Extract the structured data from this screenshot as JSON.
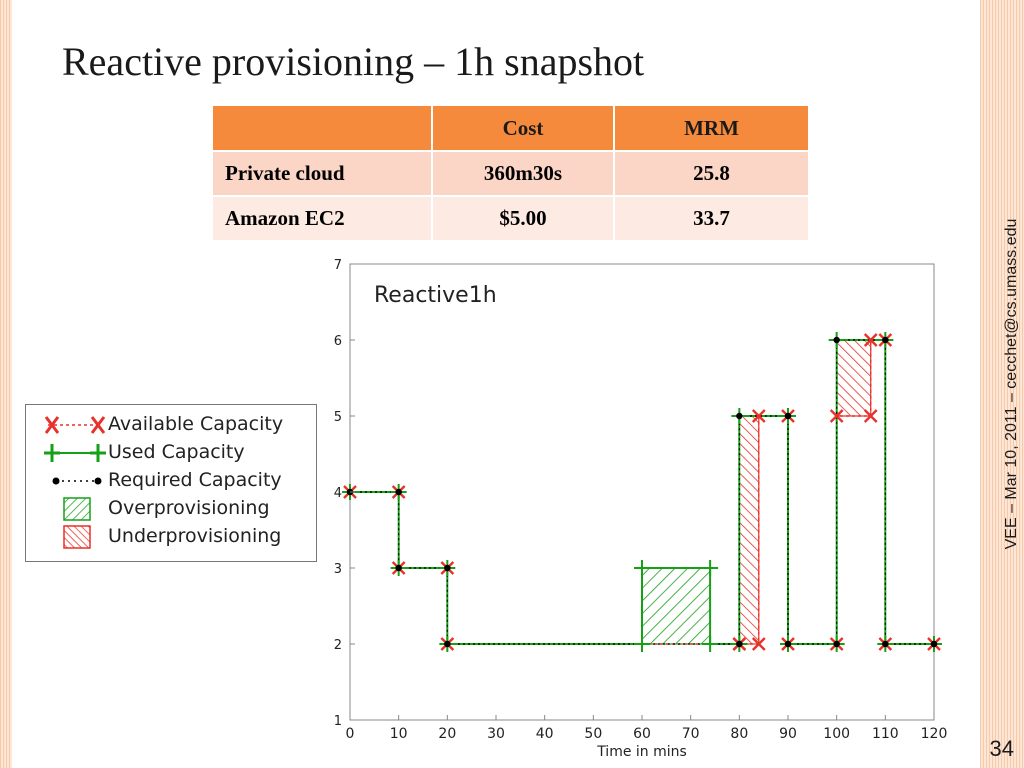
{
  "slide": {
    "title": "Reactive provisioning – 1h snapshot",
    "side_note": "VEE – Mar 10, 2011 – cecchet@cs.umass.edu",
    "page_number": "34",
    "accent_color": "#f58a3c"
  },
  "table": {
    "headers": [
      "",
      "Cost",
      "MRM"
    ],
    "rows": [
      [
        "Private cloud",
        "360m30s",
        "25.8"
      ],
      [
        "Amazon EC2",
        "$5.00",
        "33.7"
      ]
    ]
  },
  "legend": {
    "items": [
      {
        "label": "Available Capacity",
        "icon": "red-x-marker"
      },
      {
        "label": "Used Capacity",
        "icon": "green-plus-marker"
      },
      {
        "label": "Required Capacity",
        "icon": "black-dot-marker"
      },
      {
        "label": "Overprovisioning",
        "icon": "green-hatch"
      },
      {
        "label": "Underprovisioning",
        "icon": "red-hatch"
      }
    ]
  },
  "chart_data": {
    "type": "line",
    "title": "Reactive1h",
    "xlabel": "Time in mins",
    "ylabel": "",
    "xlim": [
      0,
      120
    ],
    "ylim": [
      1,
      7
    ],
    "xticks": [
      0,
      10,
      20,
      30,
      40,
      50,
      60,
      70,
      80,
      90,
      100,
      110,
      120
    ],
    "yticks": [
      1,
      2,
      3,
      4,
      5,
      6,
      7
    ],
    "grid": false,
    "step": true,
    "series": [
      {
        "name": "Available Capacity",
        "color": "#e8312a",
        "marker": "x",
        "x": [
          0,
          10,
          10,
          20,
          20,
          80,
          80,
          84,
          84,
          90,
          90,
          100,
          100,
          107,
          107,
          110,
          110,
          120
        ],
        "y": [
          4,
          4,
          3,
          3,
          2,
          2,
          2,
          2,
          5,
          5,
          2,
          2,
          5,
          5,
          6,
          6,
          2,
          2
        ]
      },
      {
        "name": "Used Capacity",
        "color": "#16a016",
        "marker": "+",
        "x": [
          0,
          10,
          10,
          20,
          20,
          60,
          60,
          74,
          74,
          80,
          80,
          90,
          90,
          100,
          100,
          110,
          110,
          120
        ],
        "y": [
          4,
          4,
          3,
          3,
          2,
          2,
          3,
          3,
          2,
          2,
          5,
          5,
          2,
          2,
          6,
          6,
          2,
          2
        ]
      },
      {
        "name": "Required Capacity",
        "color": "#000000",
        "marker": "dot",
        "x": [
          0,
          10,
          10,
          20,
          20,
          80,
          80,
          90,
          90,
          100,
          100,
          110,
          110,
          120
        ],
        "y": [
          4,
          4,
          3,
          3,
          2,
          2,
          5,
          5,
          2,
          2,
          6,
          6,
          2,
          2
        ]
      }
    ],
    "regions": [
      {
        "name": "Overprovisioning",
        "color": "#16a016",
        "x0": 60,
        "x1": 74,
        "y0": 2,
        "y1": 3
      },
      {
        "name": "Underprovisioning",
        "color": "#e8312a",
        "x0": 80,
        "x1": 84,
        "y0": 2,
        "y1": 5
      },
      {
        "name": "Underprovisioning",
        "color": "#e8312a",
        "x0": 100,
        "x1": 107,
        "y0": 5,
        "y1": 6
      }
    ]
  }
}
